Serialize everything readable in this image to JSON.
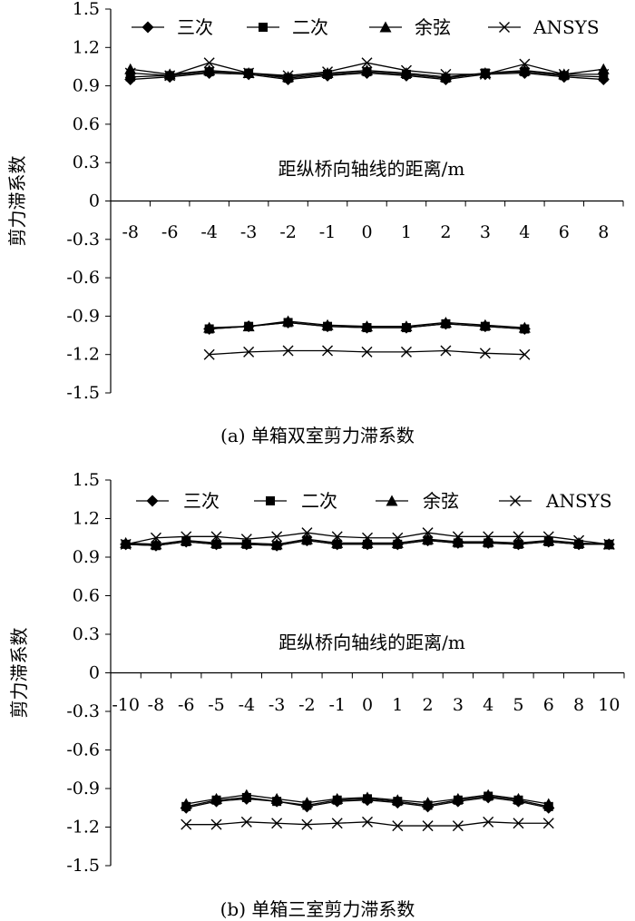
{
  "chart_data": [
    {
      "type": "line",
      "caption": "(a) 单箱双室剪力滞系数",
      "ylabel": "剪力滞系数",
      "xlabel": "距纵桥向轴线的距离/m",
      "ylim": [
        -1.5,
        1.5
      ],
      "yticks": [
        "1.5",
        "1.2",
        "0.9",
        "0.6",
        "0.3",
        "0",
        "-0.3",
        "-0.6",
        "-0.9",
        "-1.2",
        "-1.5"
      ],
      "legend": [
        "三次",
        "二次",
        "余弦",
        "ANSYS"
      ],
      "top_categories": [
        "-8",
        "-6",
        "-4",
        "-3",
        "-2",
        "-1",
        "0",
        "1",
        "2",
        "3",
        "4",
        "6",
        "8"
      ],
      "top_series": [
        {
          "name": "三次",
          "values": [
            0.95,
            0.97,
            1.0,
            0.99,
            0.95,
            0.98,
            1.0,
            0.98,
            0.95,
            0.99,
            1.0,
            0.97,
            0.95
          ]
        },
        {
          "name": "二次",
          "values": [
            0.97,
            0.98,
            1.01,
            1.0,
            0.96,
            0.99,
            1.01,
            0.99,
            0.96,
            1.0,
            1.01,
            0.98,
            0.97
          ]
        },
        {
          "name": "余弦",
          "values": [
            1.03,
            0.99,
            1.02,
            1.0,
            0.97,
            1.0,
            1.02,
            1.0,
            0.97,
            1.0,
            1.02,
            0.99,
            1.03
          ]
        },
        {
          "name": "ANSYS",
          "values": [
            1.0,
            0.98,
            1.08,
            1.0,
            0.98,
            1.01,
            1.08,
            1.02,
            0.99,
            0.99,
            1.07,
            0.99,
            0.99
          ]
        }
      ],
      "bottom_categories": [
        "-4",
        "-3",
        "-2",
        "-1",
        "0",
        "1",
        "2",
        "3",
        "4"
      ],
      "bottom_series": [
        {
          "name": "三次",
          "values": [
            -1.0,
            -0.98,
            -0.95,
            -0.98,
            -0.99,
            -0.99,
            -0.96,
            -0.98,
            -1.0
          ]
        },
        {
          "name": "二次",
          "values": [
            -1.0,
            -0.98,
            -0.95,
            -0.98,
            -0.99,
            -0.99,
            -0.96,
            -0.98,
            -1.0
          ]
        },
        {
          "name": "余弦",
          "values": [
            -0.99,
            -0.98,
            -0.94,
            -0.97,
            -0.98,
            -0.98,
            -0.95,
            -0.97,
            -0.99
          ]
        },
        {
          "name": "ANSYS",
          "values": [
            -1.2,
            -1.18,
            -1.17,
            -1.17,
            -1.18,
            -1.18,
            -1.17,
            -1.19,
            -1.2
          ]
        }
      ]
    },
    {
      "type": "line",
      "caption": "(b) 单箱三室剪力滞系数",
      "ylabel": "剪力滞系数",
      "xlabel": "距纵桥向轴线的距离/m",
      "ylim": [
        -1.5,
        1.5
      ],
      "yticks": [
        "1.5",
        "1.2",
        "0.9",
        "0.6",
        "0.3",
        "0",
        "-0.3",
        "-0.6",
        "-0.9",
        "-1.2",
        "-1.5"
      ],
      "legend": [
        "三次",
        "二次",
        "余弦",
        "ANSYS"
      ],
      "top_categories": [
        "-10",
        "-8",
        "-6",
        "-5",
        "-4",
        "-3",
        "-2",
        "-1",
        "0",
        "1",
        "2",
        "3",
        "4",
        "5",
        "6",
        "8",
        "10"
      ],
      "top_series": [
        {
          "name": "三次",
          "values": [
            1.0,
            0.99,
            1.02,
            1.0,
            1.0,
            0.99,
            1.03,
            1.0,
            1.0,
            1.0,
            1.03,
            1.01,
            1.01,
            1.0,
            1.02,
            1.0,
            1.0
          ]
        },
        {
          "name": "二次",
          "values": [
            1.0,
            0.99,
            1.02,
            1.0,
            1.0,
            0.99,
            1.03,
            1.0,
            1.0,
            1.0,
            1.03,
            1.01,
            1.01,
            1.0,
            1.02,
            1.0,
            1.0
          ]
        },
        {
          "name": "余弦",
          "values": [
            1.01,
            1.0,
            1.03,
            1.01,
            1.01,
            1.0,
            1.04,
            1.01,
            1.01,
            1.01,
            1.04,
            1.02,
            1.02,
            1.01,
            1.03,
            1.01,
            1.0
          ]
        },
        {
          "name": "ANSYS",
          "values": [
            1.0,
            1.05,
            1.06,
            1.06,
            1.04,
            1.06,
            1.09,
            1.06,
            1.05,
            1.05,
            1.09,
            1.06,
            1.06,
            1.06,
            1.06,
            1.03,
            1.0
          ]
        }
      ],
      "bottom_categories": [
        "-6",
        "-5",
        "-4",
        "-3",
        "-2",
        "-1",
        "0",
        "1",
        "2",
        "3",
        "4",
        "5",
        "6"
      ],
      "bottom_series": [
        {
          "name": "三次",
          "values": [
            -1.05,
            -1.0,
            -0.98,
            -1.0,
            -1.04,
            -1.0,
            -0.99,
            -1.01,
            -1.04,
            -1.0,
            -0.97,
            -1.0,
            -1.05
          ]
        },
        {
          "name": "二次",
          "values": [
            -1.04,
            -0.99,
            -0.97,
            -1.0,
            -1.03,
            -0.99,
            -0.98,
            -1.0,
            -1.03,
            -0.99,
            -0.96,
            -0.99,
            -1.04
          ]
        },
        {
          "name": "余弦",
          "values": [
            -1.02,
            -0.98,
            -0.95,
            -0.98,
            -1.01,
            -0.98,
            -0.97,
            -0.99,
            -1.01,
            -0.98,
            -0.95,
            -0.98,
            -1.02
          ]
        },
        {
          "name": "ANSYS",
          "values": [
            -1.18,
            -1.18,
            -1.16,
            -1.17,
            -1.18,
            -1.17,
            -1.16,
            -1.19,
            -1.19,
            -1.19,
            -1.16,
            -1.17,
            -1.17
          ]
        }
      ]
    }
  ]
}
